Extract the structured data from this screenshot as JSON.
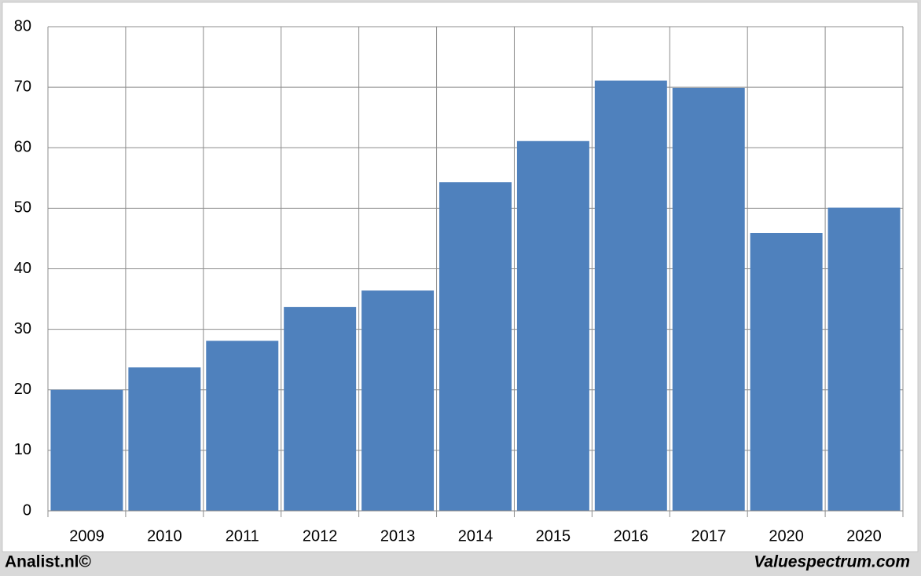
{
  "chart_data": {
    "type": "bar",
    "categories": [
      "2009",
      "2010",
      "2011",
      "2012",
      "2013",
      "2014",
      "2015",
      "2016",
      "2017",
      "2020",
      "2020"
    ],
    "values": [
      20.0,
      23.7,
      28.1,
      33.7,
      36.4,
      54.3,
      61.1,
      71.1,
      69.9,
      45.9,
      50.1
    ],
    "color": "#4f81bd",
    "ylim": [
      0,
      80
    ],
    "yticks": [
      0,
      10,
      20,
      30,
      40,
      50,
      60,
      70,
      80
    ],
    "grid": true,
    "annotations": [
      "Analist.nl©",
      "Valuespectrum.com"
    ]
  }
}
